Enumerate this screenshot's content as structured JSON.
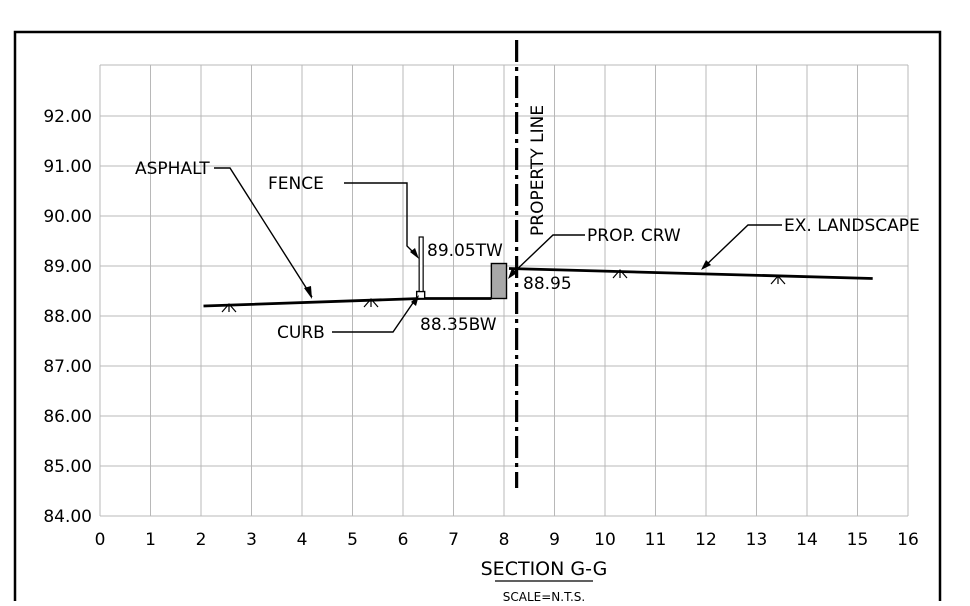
{
  "drawing": {
    "section_title": "SECTION G-G",
    "scale_note": "SCALE=N.T.S.",
    "y_ticks": [
      "92.00",
      "91.00",
      "90.00",
      "89.00",
      "88.00",
      "87.00",
      "86.00",
      "85.00",
      "84.00"
    ],
    "x_ticks": [
      "0",
      "1",
      "2",
      "3",
      "4",
      "5",
      "6",
      "7",
      "8",
      "9",
      "10",
      "11",
      "12",
      "13",
      "14",
      "15",
      "16"
    ],
    "labels": {
      "asphalt": "ASPHALT",
      "fence": "FENCE",
      "curb": "CURB",
      "prop_crw": "PROP. CRW",
      "ex_landscape": "EX. LANDSCAPE",
      "property_line": "PROPERTY LINE",
      "top_wall": "89.05TW",
      "bottom_wall": "88.35BW",
      "grade_at_wall": "88.95"
    }
  },
  "chart_data": {
    "type": "line",
    "x_range": [
      0,
      16
    ],
    "y_range": [
      84.0,
      92.0
    ],
    "grid": true,
    "property_line_x": 8.25,
    "series": [
      {
        "points": [
          [
            2.05,
            88.2
          ],
          [
            6.35,
            88.35
          ],
          [
            7.75,
            88.35
          ]
        ]
      },
      {
        "points": [
          [
            8.1,
            88.95
          ],
          [
            15.3,
            88.75
          ]
        ]
      }
    ],
    "retaining_wall": {
      "x_from": 7.75,
      "x_to": 8.05,
      "bottom": 88.35,
      "top": 89.05
    },
    "curb_x": 6.35,
    "fence_x": 6.3
  }
}
